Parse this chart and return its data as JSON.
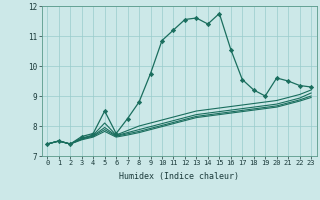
{
  "xlabel": "Humidex (Indice chaleur)",
  "xlim": [
    -0.5,
    23.5
  ],
  "ylim": [
    7,
    12
  ],
  "yticks": [
    7,
    8,
    9,
    10,
    11,
    12
  ],
  "xticks": [
    0,
    1,
    2,
    3,
    4,
    5,
    6,
    7,
    8,
    9,
    10,
    11,
    12,
    13,
    14,
    15,
    16,
    17,
    18,
    19,
    20,
    21,
    22,
    23
  ],
  "bg_color": "#cce8e8",
  "grid_color": "#99cccc",
  "line_color": "#1a6e5e",
  "line1": [
    7.4,
    7.5,
    7.4,
    7.65,
    7.75,
    8.5,
    7.75,
    8.25,
    8.8,
    9.75,
    10.85,
    11.2,
    11.55,
    11.6,
    11.4,
    11.75,
    10.55,
    9.55,
    9.2,
    9.0,
    9.6,
    9.5,
    9.35,
    9.3
  ],
  "line2": [
    7.4,
    7.5,
    7.4,
    7.6,
    7.7,
    8.1,
    7.7,
    7.85,
    8.0,
    8.1,
    8.2,
    8.3,
    8.4,
    8.5,
    8.55,
    8.6,
    8.65,
    8.7,
    8.75,
    8.8,
    8.85,
    8.95,
    9.05,
    9.2
  ],
  "line3": [
    7.4,
    7.5,
    7.4,
    7.58,
    7.68,
    7.95,
    7.68,
    7.78,
    7.88,
    7.98,
    8.08,
    8.18,
    8.28,
    8.38,
    8.43,
    8.48,
    8.53,
    8.58,
    8.63,
    8.68,
    8.73,
    8.83,
    8.93,
    9.1
  ],
  "line4": [
    7.4,
    7.5,
    7.4,
    7.56,
    7.66,
    7.88,
    7.66,
    7.74,
    7.82,
    7.92,
    8.02,
    8.12,
    8.22,
    8.32,
    8.37,
    8.42,
    8.47,
    8.52,
    8.57,
    8.62,
    8.67,
    8.77,
    8.87,
    9.0
  ],
  "line5": [
    7.4,
    7.5,
    7.4,
    7.54,
    7.63,
    7.82,
    7.63,
    7.7,
    7.78,
    7.88,
    7.98,
    8.08,
    8.18,
    8.28,
    8.33,
    8.38,
    8.43,
    8.48,
    8.53,
    8.58,
    8.63,
    8.73,
    8.83,
    8.95
  ]
}
